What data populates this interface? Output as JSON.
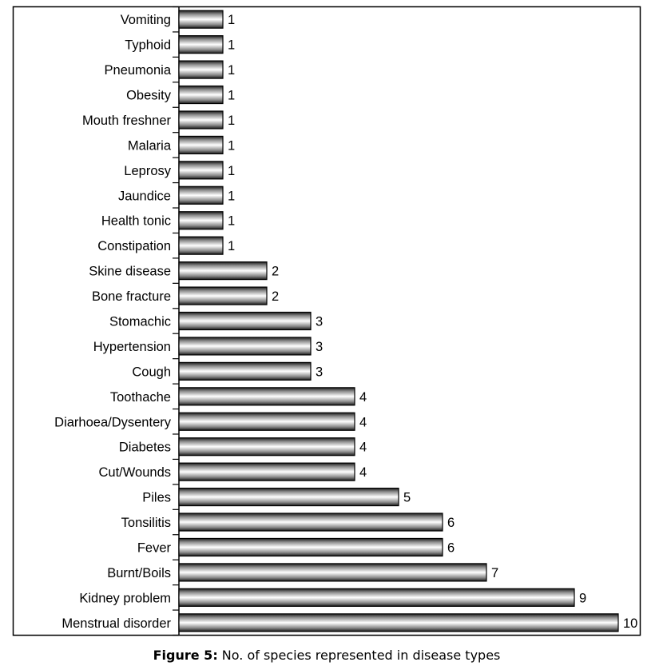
{
  "chart_data": {
    "type": "bar",
    "orientation": "horizontal",
    "title": "",
    "xlabel": "",
    "ylabel": "",
    "xlim": [
      0,
      10
    ],
    "grid": false,
    "data_labels": true,
    "categories": [
      "Vomiting",
      "Typhoid",
      "Pneumonia",
      "Obesity",
      "Mouth freshner",
      "Malaria",
      "Leprosy",
      "Jaundice",
      "Health tonic",
      "Constipation",
      "Skine disease",
      "Bone fracture",
      "Stomachic",
      "Hypertension",
      "Cough",
      "Toothache",
      "Diarhoea/Dysentery",
      "Diabetes",
      "Cut/Wounds",
      "Piles",
      "Tonsilitis",
      "Fever",
      "Burnt/Boils",
      "Kidney problem",
      "Menstrual disorder"
    ],
    "values": [
      1,
      1,
      1,
      1,
      1,
      1,
      1,
      1,
      1,
      1,
      2,
      2,
      3,
      3,
      3,
      4,
      4,
      4,
      4,
      5,
      6,
      6,
      7,
      9,
      10
    ]
  },
  "caption": {
    "prefix": "Figure 5:",
    "text": " No. of species represented in disease types"
  }
}
